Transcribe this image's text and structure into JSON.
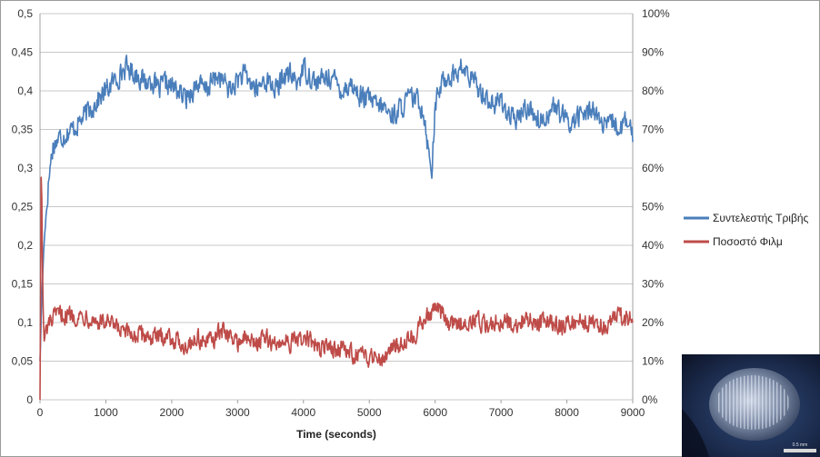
{
  "chart_data": {
    "type": "line",
    "xlabel": "Time (seconds)",
    "x_ticks": [
      "0",
      "1000",
      "2000",
      "3000",
      "4000",
      "5000",
      "6000",
      "7000",
      "8000",
      "9000"
    ],
    "y_ticks_left": [
      "0",
      "0,05",
      "0,1",
      "0,15",
      "0,2",
      "0,25",
      "0,3",
      "0,35",
      "0,4",
      "0,45",
      "0,5"
    ],
    "y_ticks_right": [
      "0%",
      "10%",
      "20%",
      "30%",
      "40%",
      "50%",
      "60%",
      "70%",
      "80%",
      "90%",
      "100%"
    ],
    "xlim": [
      0,
      9000
    ],
    "ylim_left": [
      0,
      0.5
    ],
    "ylim_right": [
      0,
      1
    ],
    "grid": true,
    "legend_position": "right",
    "series": [
      {
        "name": "Συντελεστής Τριβής",
        "axis": "left",
        "color": "#4a7ebb",
        "x": [
          0,
          30,
          60,
          100,
          150,
          200,
          300,
          400,
          500,
          600,
          700,
          800,
          900,
          1000,
          1100,
          1200,
          1300,
          1400,
          1500,
          1600,
          1700,
          1800,
          1900,
          2000,
          2100,
          2200,
          2300,
          2400,
          2500,
          2600,
          2700,
          2800,
          2900,
          3000,
          3100,
          3200,
          3300,
          3400,
          3500,
          3600,
          3700,
          3800,
          3900,
          4000,
          4100,
          4200,
          4300,
          4400,
          4500,
          4600,
          4700,
          4800,
          4900,
          5000,
          5100,
          5200,
          5300,
          5400,
          5500,
          5600,
          5700,
          5800,
          5850,
          5900,
          5950,
          6000,
          6100,
          6200,
          6300,
          6400,
          6500,
          6600,
          6700,
          6800,
          6900,
          7000,
          7100,
          7200,
          7300,
          7400,
          7500,
          7600,
          7700,
          7800,
          7900,
          8000,
          8100,
          8200,
          8300,
          8400,
          8500,
          8600,
          8700,
          8800,
          8900,
          9000
        ],
        "y": [
          0.05,
          0.14,
          0.2,
          0.25,
          0.3,
          0.33,
          0.34,
          0.345,
          0.35,
          0.36,
          0.37,
          0.38,
          0.39,
          0.4,
          0.41,
          0.42,
          0.43,
          0.425,
          0.42,
          0.41,
          0.415,
          0.4,
          0.41,
          0.405,
          0.4,
          0.39,
          0.4,
          0.41,
          0.4,
          0.41,
          0.42,
          0.41,
          0.4,
          0.415,
          0.42,
          0.41,
          0.4,
          0.415,
          0.41,
          0.4,
          0.42,
          0.42,
          0.41,
          0.43,
          0.42,
          0.41,
          0.415,
          0.42,
          0.41,
          0.4,
          0.41,
          0.4,
          0.39,
          0.39,
          0.38,
          0.38,
          0.37,
          0.37,
          0.38,
          0.39,
          0.39,
          0.38,
          0.36,
          0.32,
          0.3,
          0.38,
          0.41,
          0.42,
          0.42,
          0.43,
          0.42,
          0.41,
          0.4,
          0.39,
          0.38,
          0.39,
          0.37,
          0.36,
          0.37,
          0.38,
          0.37,
          0.36,
          0.37,
          0.38,
          0.37,
          0.36,
          0.36,
          0.37,
          0.37,
          0.38,
          0.36,
          0.35,
          0.36,
          0.35,
          0.36,
          0.34
        ]
      },
      {
        "name": "Ποσοστό Φιλμ",
        "axis": "right",
        "color": "#be4b48",
        "x": [
          0,
          20,
          40,
          60,
          100,
          150,
          200,
          300,
          400,
          500,
          600,
          700,
          800,
          900,
          1000,
          1100,
          1200,
          1300,
          1400,
          1500,
          1600,
          1700,
          1800,
          1900,
          2000,
          2100,
          2200,
          2300,
          2400,
          2500,
          2600,
          2700,
          2800,
          2900,
          3000,
          3100,
          3200,
          3300,
          3400,
          3500,
          3600,
          3700,
          3800,
          3900,
          4000,
          4100,
          4200,
          4300,
          4400,
          4500,
          4600,
          4700,
          4800,
          4900,
          5000,
          5100,
          5200,
          5300,
          5400,
          5500,
          5600,
          5700,
          5800,
          5900,
          6000,
          6100,
          6200,
          6300,
          6400,
          6500,
          6600,
          6700,
          6800,
          6900,
          7000,
          7100,
          7200,
          7300,
          7400,
          7500,
          7600,
          7700,
          7800,
          7900,
          8000,
          8100,
          8200,
          8300,
          8400,
          8500,
          8600,
          8700,
          8800,
          8900,
          9000
        ],
        "y": [
          0.0,
          0.64,
          0.3,
          0.15,
          0.18,
          0.2,
          0.21,
          0.22,
          0.22,
          0.22,
          0.215,
          0.22,
          0.21,
          0.2,
          0.2,
          0.19,
          0.18,
          0.17,
          0.17,
          0.165,
          0.17,
          0.16,
          0.16,
          0.17,
          0.16,
          0.15,
          0.14,
          0.15,
          0.16,
          0.15,
          0.15,
          0.17,
          0.18,
          0.16,
          0.15,
          0.16,
          0.15,
          0.15,
          0.16,
          0.15,
          0.14,
          0.16,
          0.15,
          0.15,
          0.16,
          0.15,
          0.14,
          0.13,
          0.14,
          0.13,
          0.13,
          0.12,
          0.12,
          0.11,
          0.11,
          0.12,
          0.11,
          0.13,
          0.14,
          0.15,
          0.16,
          0.17,
          0.2,
          0.22,
          0.24,
          0.22,
          0.2,
          0.19,
          0.2,
          0.2,
          0.21,
          0.2,
          0.19,
          0.2,
          0.21,
          0.2,
          0.19,
          0.2,
          0.21,
          0.2,
          0.2,
          0.21,
          0.2,
          0.19,
          0.2,
          0.2,
          0.21,
          0.2,
          0.2,
          0.19,
          0.2,
          0.21,
          0.22,
          0.21,
          0.22
        ]
      }
    ]
  },
  "image": {
    "scale_label": "0.5 mm"
  }
}
